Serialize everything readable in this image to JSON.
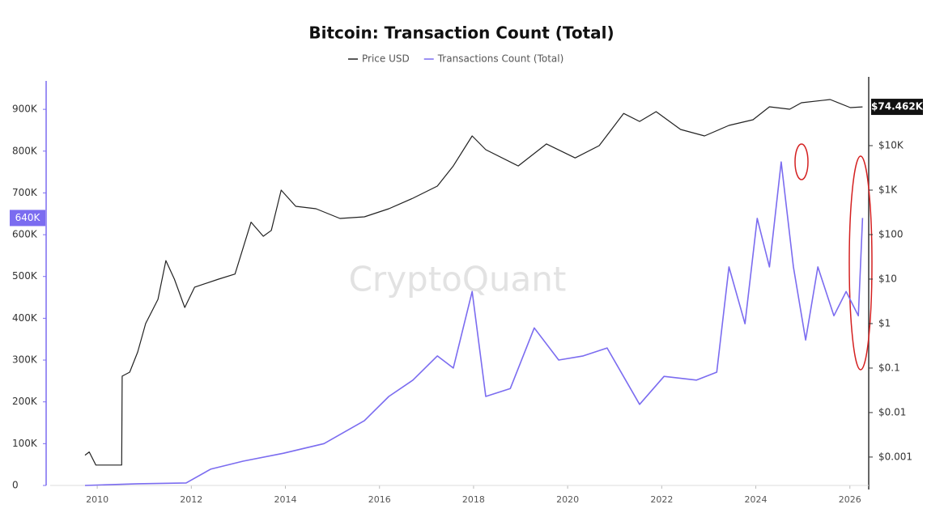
{
  "chart_data": {
    "type": "line",
    "title": "Bitcoin: Transaction Count (Total)",
    "watermark": "CryptoQuant",
    "xlim": [
      2009,
      2026.4
    ],
    "xticks": [
      2010,
      2012,
      2014,
      2016,
      2018,
      2020,
      2022,
      2024,
      2026
    ],
    "ylim": [
      0,
      968000
    ],
    "yticks": [
      0,
      {
        "value": 100000,
        "label": "100K"
      },
      {
        "value": 200000,
        "label": "200K"
      },
      {
        "value": 300000,
        "label": "300K"
      },
      {
        "value": 400000,
        "label": "400K"
      },
      {
        "value": 500000,
        "label": "500K"
      },
      {
        "value": 600000,
        "label": "600K"
      },
      {
        "value": 700000,
        "label": "700K"
      },
      {
        "value": 800000,
        "label": "800K"
      },
      {
        "value": 900000,
        "label": "900K"
      }
    ],
    "y2lim": [
      0.00023,
      285000
    ],
    "y2log": true,
    "y2ticks": [
      {
        "value": 0.001,
        "label": "$0.001"
      },
      {
        "value": 0.01,
        "label": "$0.01"
      },
      {
        "value": 0.1,
        "label": "$0.1"
      },
      {
        "value": 1,
        "label": "$1"
      },
      {
        "value": 10,
        "label": "$10"
      },
      {
        "value": 100,
        "label": "$100"
      },
      {
        "value": 1000,
        "label": "$1K"
      },
      {
        "value": 10000,
        "label": "$10K"
      }
    ],
    "grid": false,
    "legend": "top",
    "series": [
      {
        "name": "Price USD",
        "color": "#222222",
        "axis": "y2",
        "current_label": {
          "value": 74462,
          "label": "$74.462K"
        },
        "x": [
          2009.74,
          2009.83,
          2009.97,
          2010.52,
          2010.53,
          2010.69,
          2010.86,
          2011.03,
          2011.29,
          2011.46,
          2011.64,
          2011.86,
          2012.07,
          2012.58,
          2012.93,
          2013.27,
          2013.53,
          2013.7,
          2013.91,
          2014.22,
          2014.65,
          2015.16,
          2015.68,
          2016.2,
          2016.71,
          2017.23,
          2017.57,
          2017.97,
          2018.26,
          2018.95,
          2019.55,
          2020.16,
          2020.67,
          2021.19,
          2021.53,
          2021.88,
          2022.4,
          2022.91,
          2023.43,
          2023.94,
          2024.29,
          2024.72,
          2024.97,
          2025.58,
          2026.01,
          2026.27
        ],
        "values": [
          0.0011,
          0.0013,
          0.00066,
          0.00066,
          0.066,
          0.081,
          0.23,
          1.0,
          3.5,
          26,
          10,
          2.3,
          6.6,
          10,
          13,
          190,
          92,
          124,
          1000,
          433,
          382,
          231,
          251,
          382,
          658,
          1230,
          3500,
          16500,
          8100,
          3500,
          10900,
          5300,
          10000,
          53000,
          35000,
          58000,
          23100,
          16500,
          28500,
          38200,
          74600,
          65800,
          92000,
          109000,
          71600,
          74462
        ]
      },
      {
        "name": "Transactions Count (Total)",
        "color": "#7b6cf0",
        "axis": "y",
        "current_label": {
          "value": 640000,
          "label": "640K"
        },
        "x": [
          2009.74,
          2010.86,
          2011.89,
          2012.41,
          2013.1,
          2013.96,
          2014.82,
          2015.68,
          2016.2,
          2016.71,
          2017.23,
          2017.57,
          2017.97,
          2018.26,
          2018.78,
          2019.29,
          2019.81,
          2020.33,
          2020.84,
          2021.53,
          2022.05,
          2022.74,
          2023.17,
          2023.43,
          2023.77,
          2024.03,
          2024.29,
          2024.54,
          2024.8,
          2025.06,
          2025.32,
          2025.66,
          2025.92,
          2026.18,
          2026.27
        ],
        "values": [
          0,
          4000,
          6000,
          39000,
          58000,
          77000,
          100000,
          155000,
          213000,
          252000,
          310000,
          281000,
          464000,
          213000,
          232000,
          377000,
          300000,
          310000,
          329000,
          194000,
          261000,
          252000,
          271000,
          523000,
          387000,
          639000,
          523000,
          774000,
          523000,
          348000,
          523000,
          406000,
          464000,
          406000,
          640000
        ]
      }
    ]
  }
}
